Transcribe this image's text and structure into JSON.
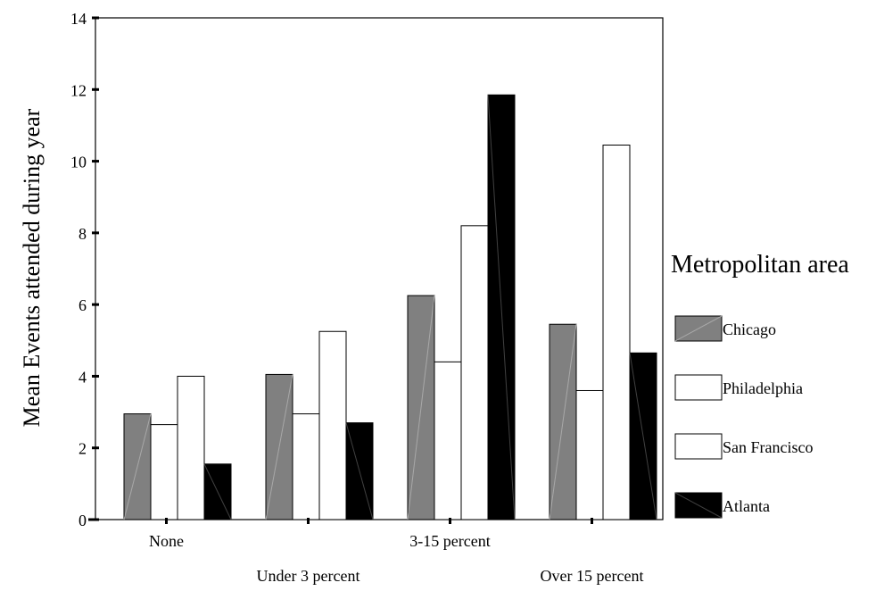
{
  "chart_data": {
    "type": "bar",
    "title": "",
    "xlabel": "",
    "ylabel": "Mean Events attended during year",
    "ylim": [
      0,
      14
    ],
    "yticks": [
      0,
      2,
      4,
      6,
      8,
      10,
      12,
      14
    ],
    "grid": false,
    "categories": [
      "None",
      "Under 3 percent",
      "3-15 percent",
      "Over 15 percent"
    ],
    "series": [
      {
        "name": "Chicago",
        "values": [
          2.95,
          4.05,
          6.25,
          5.45
        ],
        "color": "#808080"
      },
      {
        "name": "Philadelphia",
        "values": [
          2.65,
          2.95,
          4.4,
          3.6
        ],
        "color": "#ffffff"
      },
      {
        "name": "San Francisco",
        "values": [
          4.0,
          5.25,
          8.2,
          10.45
        ],
        "color": "#ffffff"
      },
      {
        "name": "Atlanta",
        "values": [
          1.55,
          2.7,
          11.85,
          4.65
        ],
        "color": "#000000"
      }
    ],
    "legend": {
      "title": "Metropolitan area",
      "position": "right"
    }
  }
}
